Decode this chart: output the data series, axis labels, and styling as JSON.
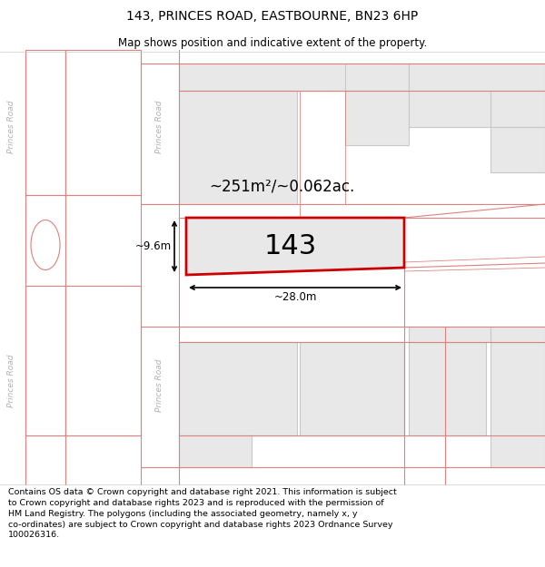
{
  "title": "143, PRINCES ROAD, EASTBOURNE, BN23 6HP",
  "subtitle": "Map shows position and indicative extent of the property.",
  "footer": "Contains OS data © Crown copyright and database right 2021. This information is subject\nto Crown copyright and database rights 2023 and is reproduced with the permission of\nHM Land Registry. The polygons (including the associated geometry, namely x, y\nco-ordinates) are subject to Crown copyright and database rights 2023 Ordnance Survey\n100026316.",
  "bg_color": "#ffffff",
  "block_fill": "#e8e8e8",
  "block_edge": "#c8c8c8",
  "road_line_color": "#e08080",
  "highlight_color": "#cc0000",
  "road_label_color": "#b0b0b0",
  "area_label": "~251m²/~0.062ac.",
  "num_label": "143",
  "dim_width": "~28.0m",
  "dim_height": "~9.6m",
  "title_fontsize": 10,
  "subtitle_fontsize": 8.5,
  "footer_fontsize": 6.8
}
